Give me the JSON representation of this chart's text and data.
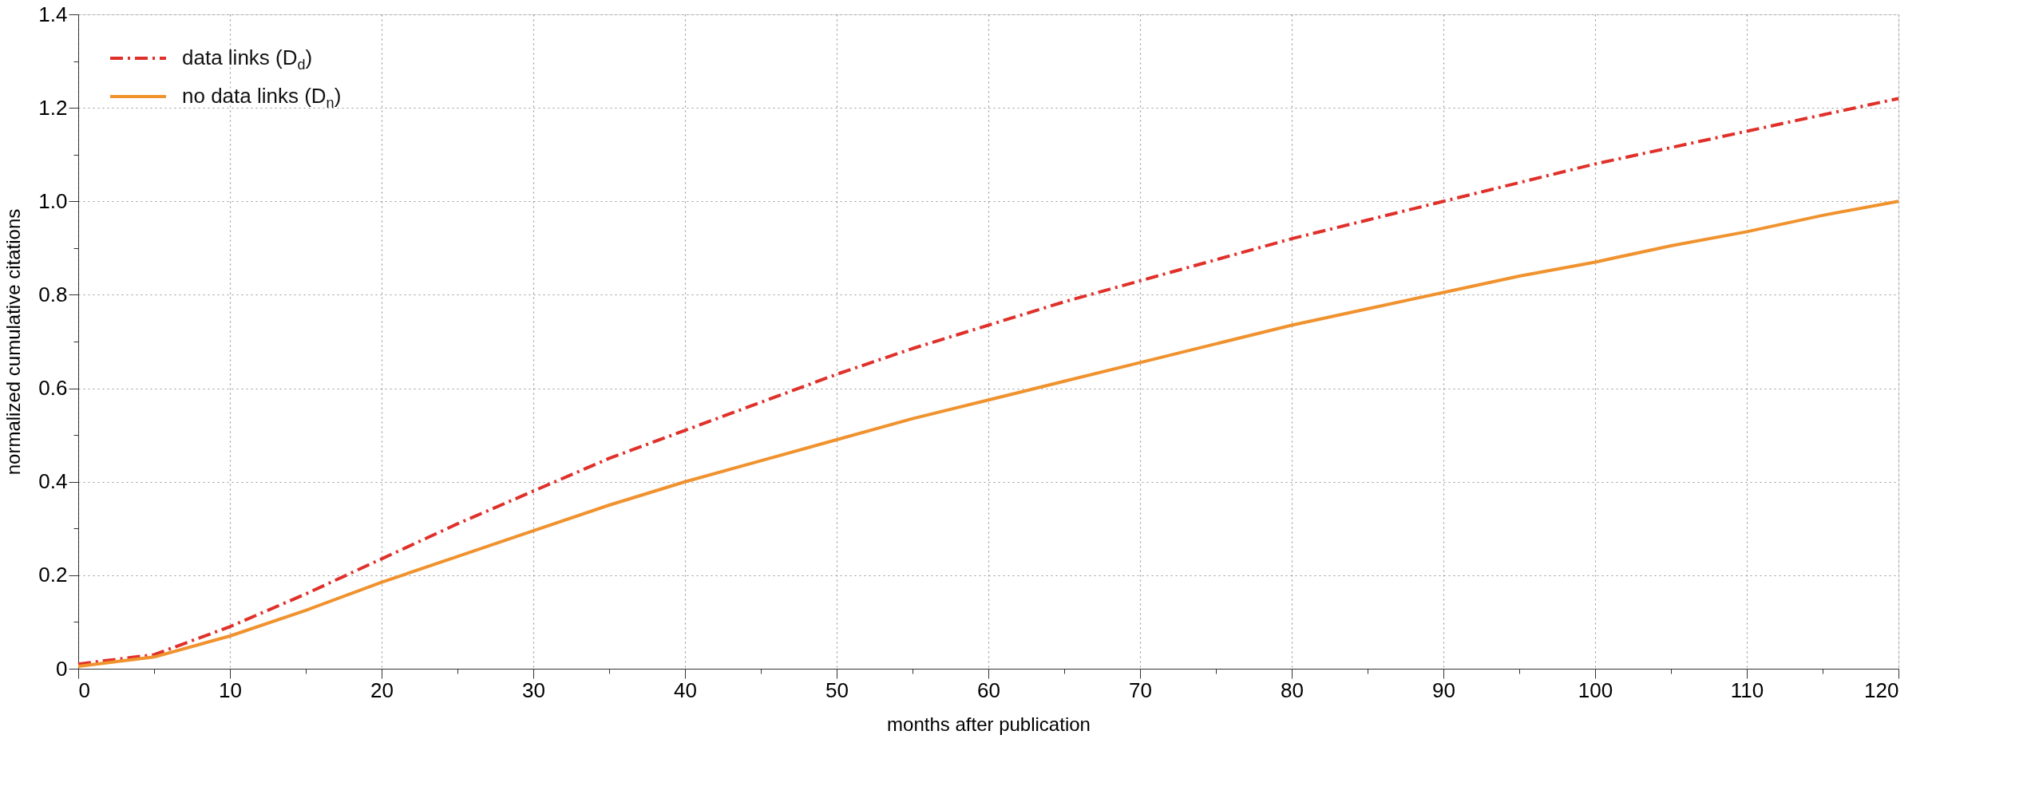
{
  "chart_data": {
    "type": "line",
    "xlabel": "months after publication",
    "ylabel": "normalized cumulative citations",
    "x": [
      0,
      5,
      10,
      15,
      20,
      25,
      30,
      35,
      40,
      45,
      50,
      55,
      60,
      65,
      70,
      75,
      80,
      85,
      90,
      95,
      100,
      105,
      110,
      115,
      120
    ],
    "series": [
      {
        "name": "data links (D$_{d}$)",
        "color": "#e0302a",
        "line_style": "dashdot",
        "values": [
          0.01,
          0.03,
          0.09,
          0.16,
          0.235,
          0.31,
          0.38,
          0.45,
          0.51,
          0.57,
          0.63,
          0.685,
          0.735,
          0.785,
          0.83,
          0.875,
          0.92,
          0.96,
          1.0,
          1.04,
          1.08,
          1.115,
          1.15,
          1.185,
          1.22
        ]
      },
      {
        "name": "no data links (D$_{n}$)",
        "color": "#f0922e",
        "line_style": "solid",
        "values": [
          0.005,
          0.025,
          0.07,
          0.125,
          0.185,
          0.24,
          0.295,
          0.35,
          0.4,
          0.445,
          0.49,
          0.535,
          0.575,
          0.615,
          0.655,
          0.695,
          0.735,
          0.77,
          0.805,
          0.84,
          0.87,
          0.905,
          0.935,
          0.97,
          1.0
        ]
      }
    ],
    "xlim": [
      0,
      120
    ],
    "xticks": [
      0,
      {
        "value": 5,
        "label": null
      },
      10,
      {
        "value": 15,
        "label": null
      },
      20,
      {
        "value": 25,
        "label": null
      },
      30,
      {
        "value": 35,
        "label": null
      },
      40,
      {
        "value": 45,
        "label": null
      },
      50,
      {
        "value": 55,
        "label": null
      },
      60,
      {
        "value": 65,
        "label": null
      },
      70,
      {
        "value": 75,
        "label": null
      },
      80,
      {
        "value": 85,
        "label": null
      },
      90,
      {
        "value": 95,
        "label": null
      },
      100,
      {
        "value": 105,
        "label": null
      },
      110,
      {
        "value": 115,
        "label": null
      },
      120
    ],
    "ylim": [
      0,
      1.4
    ],
    "yticks": [
      0,
      {
        "value": 0.1,
        "label": null
      },
      0.2,
      {
        "value": 0.3,
        "label": null
      },
      0.4,
      {
        "value": 0.5,
        "label": null
      },
      0.6,
      {
        "value": 0.7,
        "label": null
      },
      0.8,
      {
        "value": 0.9,
        "label": null
      },
      {
        "value": 1,
        "label": "1.0"
      },
      {
        "value": 1.1,
        "label": null
      },
      1.2,
      {
        "value": 1.3,
        "label": null
      },
      1.4
    ],
    "grid": true,
    "legend": "top left",
    "marker": "none"
  }
}
